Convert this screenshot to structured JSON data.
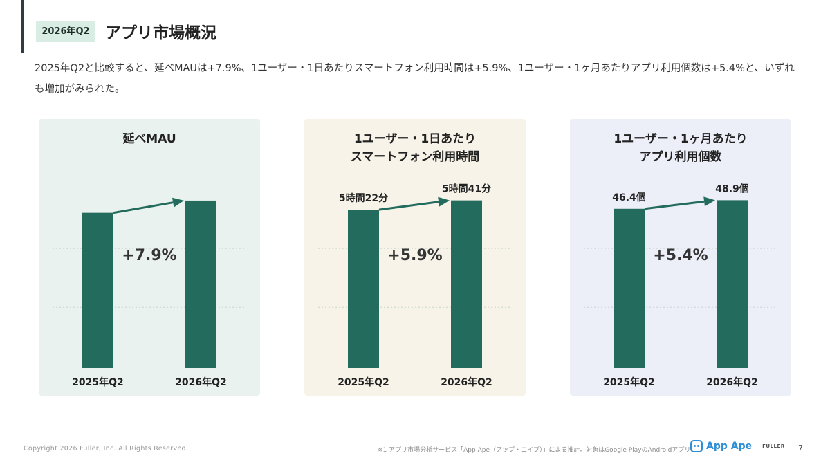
{
  "header": {
    "badge": "2026年Q2",
    "title": "アプリ市場概況"
  },
  "summary": "2025年Q2と比較すると、延べMAUは+7.9%、1ユーザー・1日あたりスマートフォン利用時間は+5.9%、1ユーザー・1ヶ月あたりアプリ利用個数は+5.4%と、いずれも増加がみられた。",
  "colors": {
    "bar": "#236b5c",
    "arrow": "#236b5c",
    "grid": "#c9d4cf",
    "panel_1_bg": "#e9f2ee",
    "panel_2_bg": "#f7f3e8",
    "panel_3_bg": "#eceff8"
  },
  "chart_data": [
    {
      "type": "bar",
      "title": "延べMAU",
      "categories": [
        "2025年Q2",
        "2026年Q2"
      ],
      "values": [
        100,
        107.9
      ],
      "value_labels": [
        "",
        ""
      ],
      "change_label": "+7.9%",
      "ylim": [
        0,
        115
      ],
      "grid": true,
      "background": "#e9f2ee"
    },
    {
      "type": "bar",
      "title": "1ユーザー・1日あたり\nスマートフォン利用時間",
      "categories": [
        "2025年Q2",
        "2026年Q2"
      ],
      "values": [
        322,
        341
      ],
      "value_labels": [
        "5時間22分",
        "5時間41分"
      ],
      "change_label": "+5.9%",
      "ylim": [
        0,
        363
      ],
      "grid": true,
      "background": "#f7f3e8"
    },
    {
      "type": "bar",
      "title": "1ユーザー・1ヶ月あたり\nアプリ利用個数",
      "categories": [
        "2025年Q2",
        "2026年Q2"
      ],
      "values": [
        46.4,
        48.9
      ],
      "value_labels": [
        "46.4個",
        "48.9個"
      ],
      "change_label": "+5.4%",
      "ylim": [
        0,
        52
      ],
      "grid": true,
      "background": "#eceff8"
    }
  ],
  "footer": {
    "copyright": "Copyright 2026 Fuller, Inc. All Rights Reserved.",
    "note": "※1 アプリ市場分析サービス「App Ape（アップ・エイプ）」による推計。対象はGoogle PlayのAndroidアプリ",
    "logo_text": "App Ape",
    "logo_sub": "FULLER",
    "page_number": "7"
  }
}
